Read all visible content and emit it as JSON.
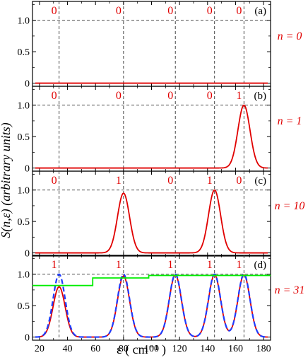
{
  "chart_data": {
    "type": "line",
    "xlabel": "ε  ( cm⁻¹ )",
    "ylabel": "S(n,ε)  (arbitrary units)",
    "xlim": [
      15,
      185
    ],
    "ylim": [
      -0.05,
      1.3
    ],
    "x_ticks": [
      "20",
      "40",
      "60",
      "80",
      "100",
      "120",
      "140",
      "160",
      "180"
    ],
    "y_ticks": [
      "0",
      "0.5",
      "1.0"
    ],
    "grid": "dashed guide lines at ε = 34, 80, 117, 145, 166 and at S = 1.0",
    "reference_lines": {
      "x": [
        34,
        80,
        117,
        145,
        166
      ],
      "y": 1.0
    },
    "colors": {
      "red": "#e00000",
      "blue": "#1e3cff",
      "green": "#00ee00",
      "grid": "#333333"
    },
    "panels": [
      {
        "label": "(a)",
        "n_label": "n = 0",
        "top_labels": [
          "0",
          "0",
          "0",
          "0",
          "0"
        ],
        "series": [
          {
            "color": "red",
            "peaks": []
          }
        ]
      },
      {
        "label": "(b)",
        "n_label": "n = 1",
        "top_labels": [
          "0",
          "0",
          "0",
          "0",
          "1"
        ],
        "series": [
          {
            "color": "red",
            "peaks": [
              {
                "center": 166,
                "height": 1.0,
                "width": 4.3
              }
            ]
          }
        ]
      },
      {
        "label": "(c)",
        "n_label": "n = 10",
        "top_labels": [
          "0",
          "1",
          "0",
          "1",
          "0"
        ],
        "series": [
          {
            "color": "red",
            "peaks": [
              {
                "center": 80,
                "height": 0.95,
                "width": 4.3
              },
              {
                "center": 145,
                "height": 1.0,
                "width": 4.3
              }
            ]
          }
        ]
      },
      {
        "label": "(d)",
        "n_label": "n = 31",
        "top_labels": [
          "1",
          "1",
          "1",
          "1",
          "1"
        ],
        "series": [
          {
            "color": "red",
            "peaks": [
              {
                "center": 34,
                "height": 0.8,
                "width": 4.3
              },
              {
                "center": 80,
                "height": 0.97,
                "width": 4.3
              },
              {
                "center": 117,
                "height": 0.99,
                "width": 4.3
              },
              {
                "center": 145,
                "height": 0.99,
                "width": 4.3
              },
              {
                "center": 166,
                "height": 0.99,
                "width": 4.3
              }
            ]
          },
          {
            "color": "blue",
            "dashed": true,
            "peaks": [
              {
                "center": 34,
                "height": 1.0,
                "width": 4.3
              },
              {
                "center": 80,
                "height": 1.0,
                "width": 4.3
              },
              {
                "center": 117,
                "height": 1.0,
                "width": 4.3
              },
              {
                "center": 145,
                "height": 1.0,
                "width": 4.3
              },
              {
                "center": 166,
                "height": 1.0,
                "width": 4.3
              }
            ]
          },
          {
            "color": "green",
            "step": [
              [
                15,
                0.82
              ],
              [
                58,
                0.82
              ],
              [
                58,
                0.94
              ],
              [
                98,
                0.94
              ],
              [
                98,
                0.98
              ],
              [
                185,
                0.98
              ]
            ]
          }
        ]
      }
    ]
  }
}
